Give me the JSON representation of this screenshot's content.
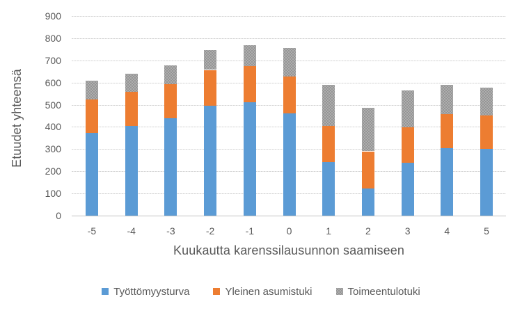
{
  "chart_data": {
    "type": "bar",
    "stacked": true,
    "title": "",
    "xlabel": "Kuukautta karenssilausunnon saamiseen",
    "ylabel": "Etuudet yhteensä",
    "categories": [
      "-5",
      "-4",
      "-3",
      "-2",
      "-1",
      "0",
      "1",
      "2",
      "3",
      "4",
      "5"
    ],
    "series": [
      {
        "name": "Työttömyysturva",
        "color": "#5B9BD5",
        "fill": "solid",
        "values": [
          372,
          404,
          440,
          495,
          511,
          460,
          241,
          122,
          238,
          303,
          300
        ]
      },
      {
        "name": "Yleinen asumistuki",
        "color": "#ED7D31",
        "fill": "solid",
        "values": [
          152,
          153,
          152,
          162,
          164,
          168,
          164,
          168,
          160,
          154,
          152
        ]
      },
      {
        "name": "Toimeentulotuki",
        "color": "#A6A6A6",
        "fill": "dotted-pattern",
        "values": [
          85,
          83,
          86,
          90,
          95,
          128,
          185,
          195,
          167,
          133,
          126
        ]
      }
    ],
    "stack_totals": [
      609,
      640,
      678,
      747,
      770,
      756,
      590,
      485,
      565,
      590,
      578
    ],
    "ylim": [
      0,
      900
    ],
    "ytick_step": 100,
    "yticks": [
      0,
      100,
      200,
      300,
      400,
      500,
      600,
      700,
      800,
      900
    ],
    "grid": true,
    "legend_position": "bottom",
    "colors": {
      "axis_text": "#595959",
      "gridline": "#D9D9D9",
      "axis_line": "#C2C2C2",
      "background": "#FFFFFF"
    }
  }
}
